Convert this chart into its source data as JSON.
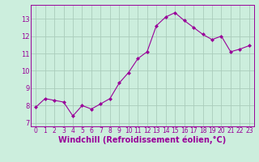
{
  "x": [
    0,
    1,
    2,
    3,
    4,
    5,
    6,
    7,
    8,
    9,
    10,
    11,
    12,
    13,
    14,
    15,
    16,
    17,
    18,
    19,
    20,
    21,
    22,
    23
  ],
  "y": [
    7.9,
    8.4,
    8.3,
    8.2,
    7.4,
    8.0,
    7.8,
    8.1,
    8.4,
    9.3,
    9.9,
    10.7,
    11.1,
    12.6,
    13.1,
    13.35,
    12.9,
    12.5,
    12.1,
    11.8,
    12.0,
    11.1,
    11.25,
    11.45
  ],
  "line_color": "#990099",
  "marker": "D",
  "marker_size": 2,
  "bg_color": "#cceedd",
  "grid_color": "#aaccbb",
  "xlabel": "Windchill (Refroidissement éolien,°C)",
  "xlabel_color": "#990099",
  "tick_color": "#990099",
  "yticks": [
    7,
    8,
    9,
    10,
    11,
    12,
    13
  ],
  "ylim": [
    6.8,
    13.8
  ],
  "xlim": [
    -0.5,
    23.5
  ],
  "xtick_labels": [
    "0",
    "1",
    "2",
    "3",
    "4",
    "5",
    "6",
    "7",
    "8",
    "9",
    "10",
    "11",
    "12",
    "13",
    "14",
    "15",
    "16",
    "17",
    "18",
    "19",
    "20",
    "21",
    "22",
    "23"
  ],
  "axis_fontsize": 6.5,
  "tick_fontsize": 6.0,
  "xlabel_fontsize": 7.0
}
